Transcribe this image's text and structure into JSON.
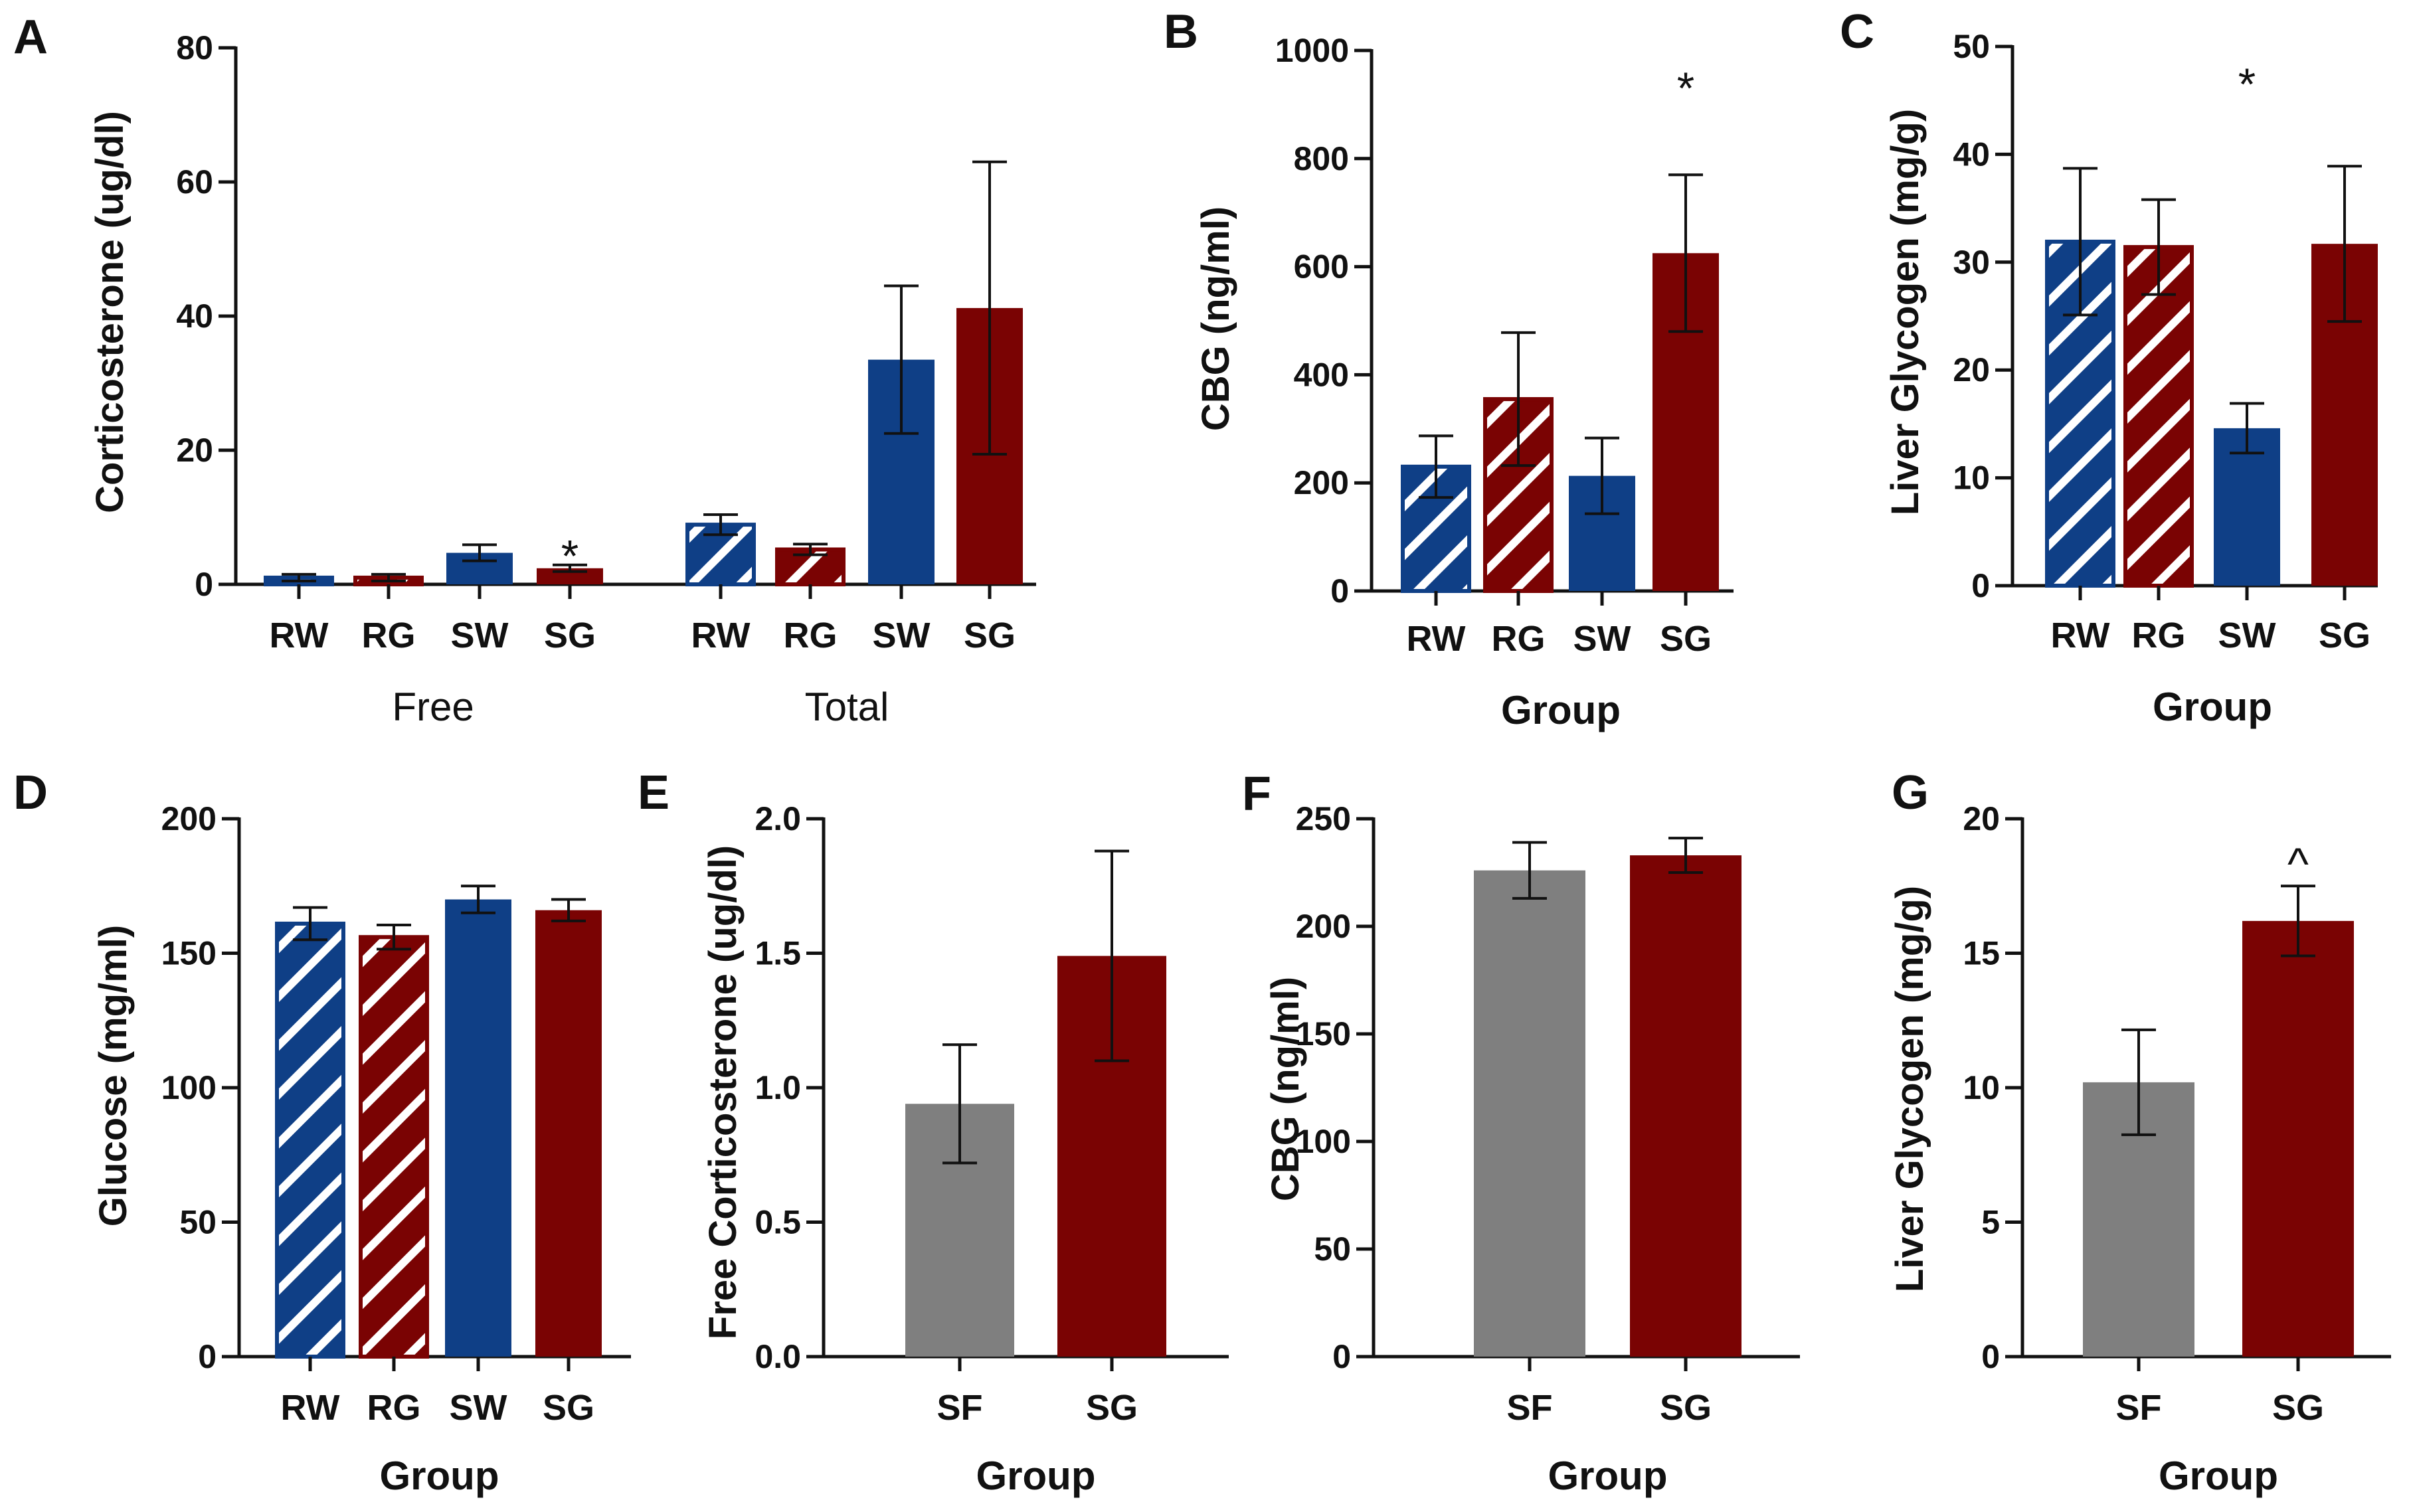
{
  "colors": {
    "blue": "#0f3f86",
    "red": "#7a0303",
    "grey": "#7f7f7f",
    "axis": "#111111",
    "hatch": "#ffffff"
  },
  "chart_data": [
    {
      "panel": "A",
      "type": "bar",
      "ylabel": "Corticosterone (ug/dl)",
      "xlabel": "",
      "ylim": [
        0,
        80
      ],
      "yticks": [
        0,
        20,
        40,
        60,
        80
      ],
      "categories": [
        "RW",
        "RG",
        "SW",
        "SG",
        "RW",
        "RG",
        "SW",
        "SG"
      ],
      "groups": [
        {
          "label": "Free",
          "indices": [
            0,
            1,
            2,
            3
          ]
        },
        {
          "label": "Total",
          "indices": [
            4,
            5,
            6,
            7
          ]
        }
      ],
      "values": [
        1.0,
        1.0,
        4.7,
        2.4,
        8.9,
        5.2,
        33.5,
        41.2
      ],
      "errors": [
        0.5,
        0.5,
        1.2,
        0.5,
        1.5,
        0.8,
        11.0,
        21.8
      ],
      "colors": [
        "blue",
        "red",
        "blue",
        "red",
        "blue",
        "red",
        "blue",
        "red"
      ],
      "hatched": [
        true,
        true,
        false,
        false,
        true,
        true,
        false,
        false
      ],
      "annotations": [
        {
          "index": 3,
          "text": "*"
        }
      ]
    },
    {
      "panel": "B",
      "type": "bar",
      "ylabel": "CBG (ng/ml)",
      "xlabel": "Group",
      "ylim": [
        0,
        1000
      ],
      "yticks": [
        0,
        200,
        400,
        600,
        800,
        1000
      ],
      "categories": [
        "RW",
        "RG",
        "SW",
        "SG"
      ],
      "values": [
        230,
        355,
        213,
        625
      ],
      "errors": [
        57,
        123,
        70,
        145
      ],
      "colors": [
        "blue",
        "red",
        "blue",
        "red"
      ],
      "hatched": [
        true,
        true,
        false,
        false
      ],
      "annotations": [
        {
          "index": 3,
          "text": "*"
        }
      ]
    },
    {
      "panel": "C",
      "type": "bar",
      "ylabel": "Liver Glycogen (mg/g)",
      "xlabel": "Group",
      "ylim": [
        0,
        50
      ],
      "yticks": [
        0,
        10,
        20,
        30,
        40,
        50
      ],
      "categories": [
        "RW",
        "RG",
        "SW",
        "SG"
      ],
      "values": [
        31.9,
        31.4,
        14.6,
        31.7
      ],
      "errors": [
        6.8,
        4.4,
        2.3,
        7.2
      ],
      "colors": [
        "blue",
        "red",
        "blue",
        "red"
      ],
      "hatched": [
        true,
        true,
        false,
        false
      ],
      "annotations": [
        {
          "index": 2,
          "text": "*"
        }
      ]
    },
    {
      "panel": "D",
      "type": "bar",
      "ylabel": "Glucose (mg/ml)",
      "xlabel": "Group",
      "ylim": [
        0,
        200
      ],
      "yticks": [
        0,
        50,
        100,
        150,
        200
      ],
      "categories": [
        "RW",
        "RG",
        "SW",
        "SG"
      ],
      "values": [
        161,
        156,
        170,
        166
      ],
      "errors": [
        6,
        4.5,
        5,
        4
      ],
      "colors": [
        "blue",
        "red",
        "blue",
        "red"
      ],
      "hatched": [
        true,
        true,
        false,
        false
      ],
      "annotations": []
    },
    {
      "panel": "E",
      "type": "bar",
      "ylabel": "Free Corticosterone (ug/dl)",
      "xlabel": "Group",
      "ylim": [
        0,
        2.0
      ],
      "yticks": [
        0.0,
        0.5,
        1.0,
        1.5,
        2.0
      ],
      "tick_decimals": 1,
      "categories": [
        "SF",
        "SG"
      ],
      "values": [
        0.94,
        1.49
      ],
      "errors": [
        0.22,
        0.39
      ],
      "colors": [
        "grey",
        "red"
      ],
      "hatched": [
        false,
        false
      ],
      "annotations": []
    },
    {
      "panel": "F",
      "type": "bar",
      "ylabel": "CBG (ng/ml)",
      "xlabel": "Group",
      "ylim": [
        0,
        250
      ],
      "yticks": [
        0,
        50,
        100,
        150,
        200,
        250
      ],
      "categories": [
        "SF",
        "SG"
      ],
      "values": [
        226,
        233
      ],
      "errors": [
        13,
        8
      ],
      "colors": [
        "grey",
        "red"
      ],
      "hatched": [
        false,
        false
      ],
      "annotations": []
    },
    {
      "panel": "G",
      "type": "bar",
      "ylabel": "Liver Glycogen (mg/g)",
      "xlabel": "Group",
      "ylim": [
        0,
        20
      ],
      "yticks": [
        0,
        5,
        10,
        15,
        20
      ],
      "categories": [
        "SF",
        "SG"
      ],
      "values": [
        10.2,
        16.2
      ],
      "errors": [
        1.95,
        1.3
      ],
      "colors": [
        "grey",
        "red"
      ],
      "hatched": [
        false,
        false
      ],
      "annotations": [
        {
          "index": 1,
          "text": "^"
        }
      ]
    }
  ]
}
